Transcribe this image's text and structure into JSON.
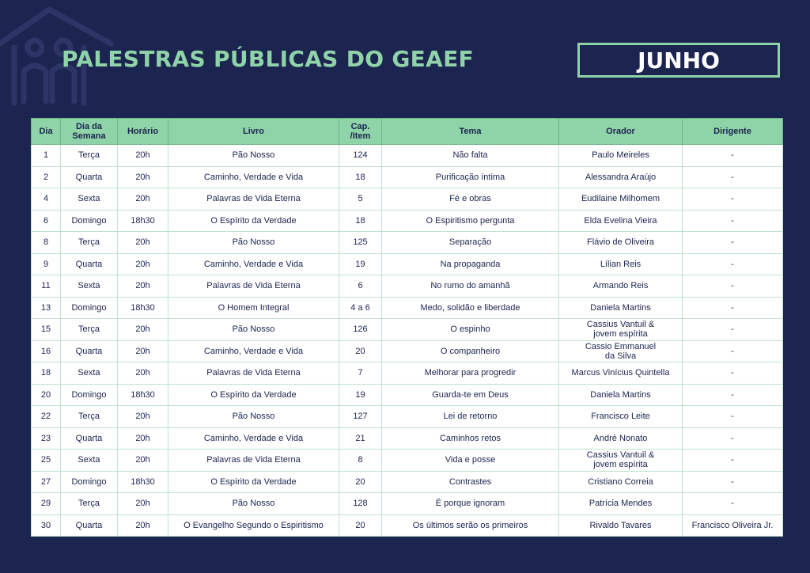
{
  "header": {
    "title": "PALESTRAS PÚBLICAS DO GEAEF",
    "month": "JUNHO",
    "logo_icon": "house-logo-icon"
  },
  "table": {
    "columns": [
      "Dia",
      "Dia da\nSemana",
      "Horário",
      "Livro",
      "Cap.\n/Item",
      "Tema",
      "Orador",
      "Dirigente"
    ],
    "rows": [
      [
        "1",
        "Terça",
        "20h",
        "Pão Nosso",
        "124",
        "Não falta",
        "Paulo Meireles",
        "-"
      ],
      [
        "2",
        "Quarta",
        "20h",
        "Caminho, Verdade e Vida",
        "18",
        "Purificação íntima",
        "Alessandra Araújo",
        "-"
      ],
      [
        "4",
        "Sexta",
        "20h",
        "Palavras de Vida Eterna",
        "5",
        "Fé e obras",
        "Eudilaine Milhomem",
        "-"
      ],
      [
        "6",
        "Domingo",
        "18h30",
        "O Espírito da Verdade",
        "18",
        "O Espiritismo pergunta",
        "Elda Evelina Vieira",
        "-"
      ],
      [
        "8",
        "Terça",
        "20h",
        "Pão Nosso",
        "125",
        "Separação",
        "Flávio de Oliveira",
        "-"
      ],
      [
        "9",
        "Quarta",
        "20h",
        "Caminho, Verdade e Vida",
        "19",
        "Na propaganda",
        "Lílian Reis",
        "-"
      ],
      [
        "11",
        "Sexta",
        "20h",
        "Palavras de Vida Eterna",
        "6",
        "No rumo do amanhã",
        "Armando Reis",
        "-"
      ],
      [
        "13",
        "Domingo",
        "18h30",
        "O Homem Integral",
        "4 a 6",
        "Medo, solidão e liberdade",
        "Daniela Martins",
        "-"
      ],
      [
        "15",
        "Terça",
        "20h",
        "Pão Nosso",
        "126",
        "O espinho",
        "Cassius Vantuil &\njovem espírita",
        "-"
      ],
      [
        "16",
        "Quarta",
        "20h",
        "Caminho, Verdade e Vida",
        "20",
        "O companheiro",
        "Cassio Emmanuel\nda Silva",
        "-"
      ],
      [
        "18",
        "Sexta",
        "20h",
        "Palavras de Vida Eterna",
        "7",
        "Melhorar para progredir",
        "Marcus Vinícius Quintella",
        "-"
      ],
      [
        "20",
        "Domingo",
        "18h30",
        "O Espírito da Verdade",
        "19",
        "Guarda-te em Deus",
        "Daniela Martins",
        "-"
      ],
      [
        "22",
        "Terça",
        "20h",
        "Pão Nosso",
        "127",
        "Lei de retorno",
        "Francisco Leite",
        "-"
      ],
      [
        "23",
        "Quarta",
        "20h",
        "Caminho, Verdade e Vida",
        "21",
        "Caminhos retos",
        "André Nonato",
        "-"
      ],
      [
        "25",
        "Sexta",
        "20h",
        "Palavras de Vida Eterna",
        "8",
        "Vida e posse",
        "Cassius Vantuil &\njovem espírita",
        "-"
      ],
      [
        "27",
        "Domingo",
        "18h30",
        "O Espírito da Verdade",
        "20",
        "Contrastes",
        "Cristiano Correia",
        "-"
      ],
      [
        "29",
        "Terça",
        "20h",
        "Pão Nosso",
        "128",
        "É porque ignoram",
        "Patrícia Mendes",
        "-"
      ],
      [
        "30",
        "Quarta",
        "20h",
        "O Evangelho Segundo o Espiritismo",
        "20",
        "Os últimos serão os primeiros",
        "Rivaldo Tavares",
        "Francisco Oliveira Jr."
      ]
    ]
  },
  "colors": {
    "background": "#1c2450",
    "accent": "#8fd3a8",
    "text": "#1c2450"
  }
}
